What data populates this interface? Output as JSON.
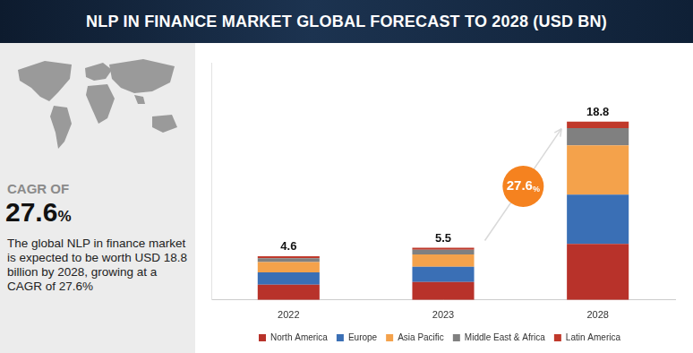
{
  "header": {
    "title": "NLP IN FINANCE MARKET GLOBAL FORECAST TO 2028 (USD BN)"
  },
  "sidebar": {
    "cagr_label": "CAGR OF",
    "cagr_value": "27.6%",
    "text": "The global NLP in finance market is expected to be worth USD 18.8 billion by 2028, growing at a CAGR of 27.6%"
  },
  "chart_data": {
    "type": "bar",
    "stacked": true,
    "categories": [
      "2022",
      "2023",
      "2028"
    ],
    "series": [
      {
        "name": "North America",
        "color": "#b8322a",
        "values": [
          1.6,
          1.9,
          5.9
        ]
      },
      {
        "name": "Europe",
        "color": "#3a6fb5",
        "values": [
          1.3,
          1.6,
          5.2
        ]
      },
      {
        "name": "Asia Pacific",
        "color": "#f4a24b",
        "values": [
          1.1,
          1.3,
          5.2
        ]
      },
      {
        "name": "Middle East & Africa",
        "color": "#808080",
        "values": [
          0.4,
          0.5,
          1.8
        ]
      },
      {
        "name": "Latin America",
        "color": "#c0392b",
        "values": [
          0.2,
          0.2,
          0.7
        ]
      }
    ],
    "totals": [
      4.6,
      5.5,
      18.8
    ],
    "annotations": [
      "27.6%"
    ],
    "ylim": [
      0,
      25
    ],
    "tick_labels": "x",
    "grid": false,
    "legend": "bottom"
  }
}
